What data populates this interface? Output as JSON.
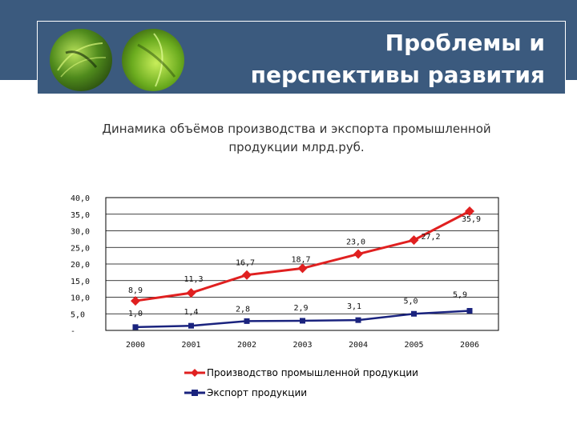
{
  "header": {
    "title_line1": "Проблемы и",
    "title_line2": "перспективы развития"
  },
  "chart_title_line1": "Динамика объёмов производства и экспорта промышленной",
  "chart_title_line2": "продукции млрд.руб.",
  "colors": {
    "header_bg": "#3b5a7e",
    "production": "#e02020",
    "export": "#1a237e"
  },
  "chart_data": {
    "type": "line",
    "categories": [
      "2000",
      "2001",
      "2002",
      "2003",
      "2004",
      "2005",
      "2006"
    ],
    "ylim": [
      0,
      40
    ],
    "y_ticks": [
      "-",
      "5,0",
      "10,0",
      "15,0",
      "20,0",
      "25,0",
      "30,0",
      "35,0",
      "40,0"
    ],
    "grid": "horizontal",
    "legend_position": "bottom",
    "series": [
      {
        "name": "Производство промышленной продукции",
        "values": [
          8.9,
          11.3,
          16.7,
          18.7,
          23.0,
          27.2,
          35.9
        ],
        "labels": [
          "8,9",
          "11,3",
          "16,7",
          "18,7",
          "23,0",
          "27,2",
          "35,9"
        ]
      },
      {
        "name": "Экспорт продукции",
        "values": [
          1.0,
          1.4,
          2.8,
          2.9,
          3.1,
          5.0,
          5.9
        ],
        "labels": [
          "1,0",
          "1,4",
          "2,8",
          "2,9",
          "3,1",
          "5,0",
          "5,9"
        ]
      }
    ]
  }
}
